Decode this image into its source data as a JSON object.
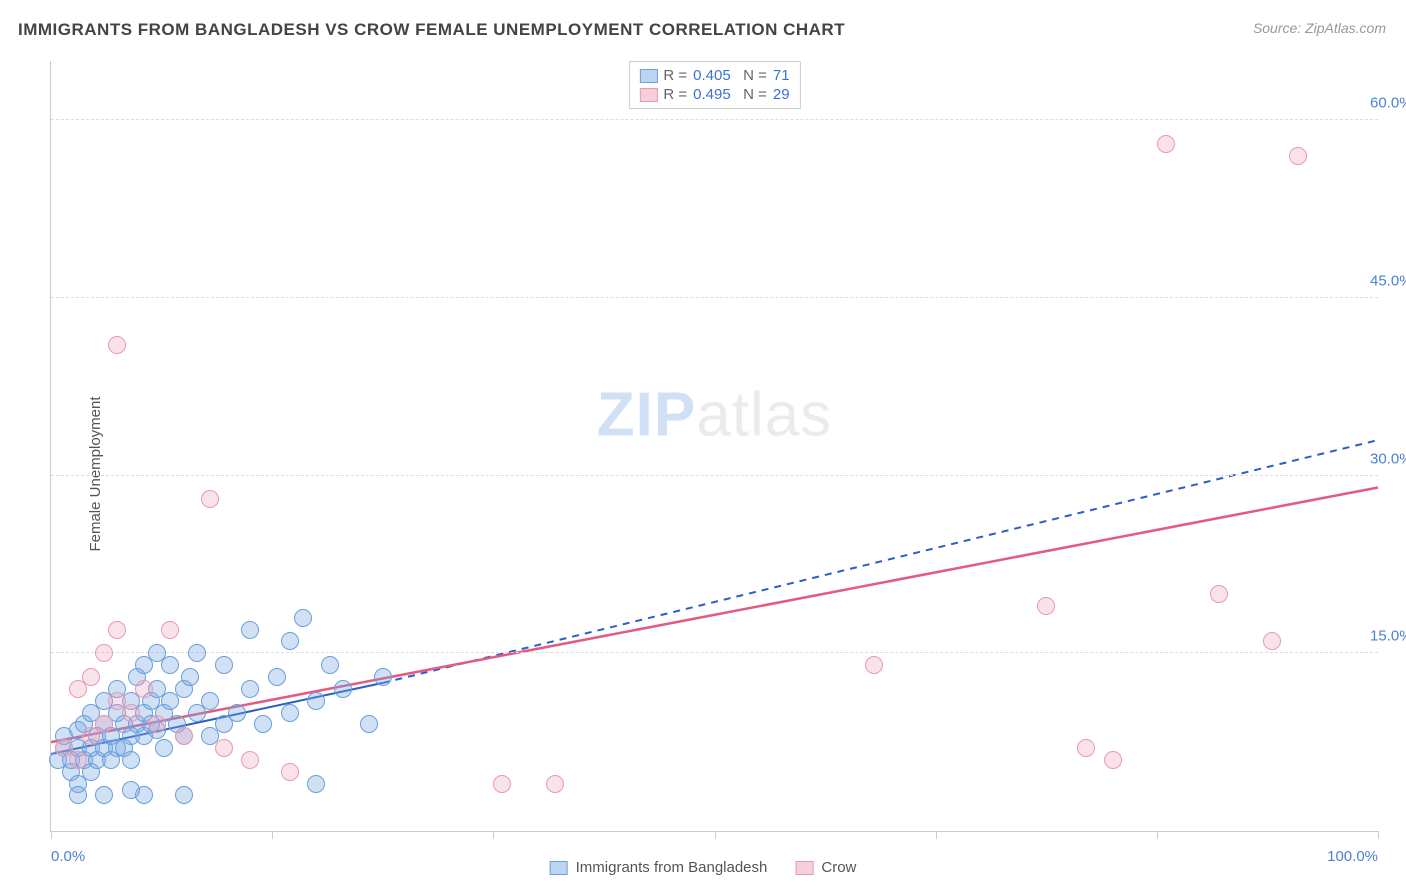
{
  "title": "IMMIGRANTS FROM BANGLADESH VS CROW FEMALE UNEMPLOYMENT CORRELATION CHART",
  "source": "Source: ZipAtlas.com",
  "watermark_a": "ZIP",
  "watermark_b": "atlas",
  "chart": {
    "type": "scatter",
    "ylabel": "Female Unemployment",
    "xlim": [
      0,
      100
    ],
    "ylim": [
      0,
      65
    ],
    "ygrid": [
      15,
      30,
      45,
      60
    ],
    "ytick_labels": [
      "15.0%",
      "30.0%",
      "45.0%",
      "60.0%"
    ],
    "xtick_positions": [
      0,
      16.67,
      33.33,
      50,
      66.67,
      83.33,
      100
    ],
    "xtick_labels_shown": {
      "0": "0.0%",
      "100": "100.0%"
    },
    "colors": {
      "blue_fill": "#7aabe6",
      "blue_stroke": "#6a9fd8",
      "pink_fill": "#f0a0b9",
      "pink_stroke": "#e89ab2",
      "axis": "#cccccc",
      "grid": "#dddddd",
      "tick_text": "#4a7fd8",
      "label_text": "#555555",
      "title_text": "#444444",
      "trend_blue": "#2a5fc4",
      "trend_pink": "#e35a82"
    },
    "point_radius": 9,
    "series": [
      {
        "name": "Immigrants from Bangladesh",
        "color": "blue",
        "R": "0.405",
        "N": "71",
        "trend": {
          "x1": 0,
          "y1": 6.5,
          "x2": 25,
          "y2": 12.5,
          "dashed": false,
          "extend_x2": 100,
          "extend_y2": 33,
          "extend_dashed": true,
          "width": 2
        },
        "points": [
          [
            0.5,
            6
          ],
          [
            1,
            7
          ],
          [
            1,
            8
          ],
          [
            1.5,
            5
          ],
          [
            1.5,
            6
          ],
          [
            2,
            7
          ],
          [
            2,
            8.5
          ],
          [
            2,
            4
          ],
          [
            2.5,
            6
          ],
          [
            2.5,
            9
          ],
          [
            3,
            7
          ],
          [
            3,
            5
          ],
          [
            3,
            10
          ],
          [
            3.5,
            8
          ],
          [
            3.5,
            6
          ],
          [
            4,
            9
          ],
          [
            4,
            7
          ],
          [
            4,
            11
          ],
          [
            4.5,
            8
          ],
          [
            4.5,
            6
          ],
          [
            5,
            10
          ],
          [
            5,
            7
          ],
          [
            5,
            12
          ],
          [
            5.5,
            9
          ],
          [
            5.5,
            7
          ],
          [
            6,
            8
          ],
          [
            6,
            11
          ],
          [
            6,
            6
          ],
          [
            6.5,
            9
          ],
          [
            6.5,
            13
          ],
          [
            7,
            10
          ],
          [
            7,
            8
          ],
          [
            7,
            14
          ],
          [
            7.5,
            9
          ],
          [
            7.5,
            11
          ],
          [
            8,
            12
          ],
          [
            8,
            8.5
          ],
          [
            8,
            15
          ],
          [
            8.5,
            10
          ],
          [
            8.5,
            7
          ],
          [
            9,
            11
          ],
          [
            9,
            14
          ],
          [
            9.5,
            9
          ],
          [
            10,
            12
          ],
          [
            10,
            8
          ],
          [
            10.5,
            13
          ],
          [
            11,
            10
          ],
          [
            11,
            15
          ],
          [
            12,
            11
          ],
          [
            12,
            8
          ],
          [
            13,
            14
          ],
          [
            13,
            9
          ],
          [
            14,
            10
          ],
          [
            15,
            12
          ],
          [
            15,
            17
          ],
          [
            16,
            9
          ],
          [
            17,
            13
          ],
          [
            18,
            10
          ],
          [
            18,
            16
          ],
          [
            20,
            11
          ],
          [
            20,
            4
          ],
          [
            21,
            14
          ],
          [
            22,
            12
          ],
          [
            24,
            9
          ],
          [
            25,
            13
          ],
          [
            19,
            18
          ],
          [
            4,
            3
          ],
          [
            7,
            3
          ],
          [
            10,
            3
          ],
          [
            2,
            3
          ],
          [
            6,
            3.5
          ]
        ]
      },
      {
        "name": "Crow",
        "color": "pink",
        "R": "0.495",
        "N": "29",
        "trend": {
          "x1": 0,
          "y1": 7.5,
          "x2": 100,
          "y2": 29,
          "dashed": false,
          "width": 2.5
        },
        "points": [
          [
            1,
            7
          ],
          [
            2,
            6
          ],
          [
            2,
            12
          ],
          [
            3,
            8
          ],
          [
            3,
            13
          ],
          [
            4,
            9
          ],
          [
            4,
            15
          ],
          [
            5,
            11
          ],
          [
            5,
            17
          ],
          [
            6,
            10
          ],
          [
            7,
            12
          ],
          [
            8,
            9
          ],
          [
            9,
            17
          ],
          [
            10,
            8
          ],
          [
            12,
            28
          ],
          [
            13,
            7
          ],
          [
            15,
            6
          ],
          [
            18,
            5
          ],
          [
            34,
            4
          ],
          [
            38,
            4
          ],
          [
            62,
            14
          ],
          [
            75,
            19
          ],
          [
            78,
            7
          ],
          [
            80,
            6
          ],
          [
            84,
            58
          ],
          [
            88,
            20
          ],
          [
            92,
            16
          ],
          [
            94,
            57
          ],
          [
            5,
            41
          ]
        ]
      }
    ]
  },
  "legend_bottom": [
    {
      "swatch": "blue",
      "label": "Immigrants from Bangladesh"
    },
    {
      "swatch": "pink",
      "label": "Crow"
    }
  ]
}
